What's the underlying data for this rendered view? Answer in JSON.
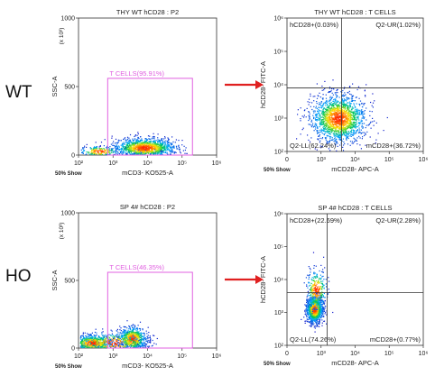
{
  "row_labels": [
    "WT",
    "HO"
  ],
  "colors": {
    "gate": "#e060e0",
    "arrow": "#e02020",
    "axis": "#333333",
    "quad": "#333333"
  },
  "chart_data": [
    {
      "type": "scatter",
      "title": "THY WT hCD28 : P2",
      "xlabel": "mCD3- KO525-A",
      "ylabel": "SSC-A",
      "y_multiplier": "(x 10³)",
      "footer": "50% Show",
      "x_scale": "log",
      "xlim": [
        100,
        1000000
      ],
      "x_ticks": [
        "10²",
        "10³",
        "10⁴",
        "10⁵",
        "10⁶"
      ],
      "ylim": [
        0,
        1000
      ],
      "y_ticks": [
        "0",
        "500",
        "1000"
      ],
      "gate": {
        "label": "T CELLS(95.91%)",
        "x_range": [
          700,
          200000
        ],
        "y_range": [
          0,
          560
        ]
      },
      "populations": [
        {
          "x_log_center": 3.9,
          "y_center": 55,
          "x_log_sd": 0.45,
          "y_sd": 35,
          "count": 1300
        },
        {
          "x_log_center": 2.6,
          "y_center": 30,
          "x_log_sd": 0.3,
          "y_sd": 20,
          "count": 200
        }
      ]
    },
    {
      "type": "scatter",
      "title": "THY WT hCD28 : T CELLS",
      "xlabel": "mCD28- APC-A",
      "ylabel": "hCD28- FITC-A",
      "footer": "50% Show",
      "x_scale": "log",
      "y_scale": "log",
      "xlim": [
        100,
        1000000
      ],
      "ylim": [
        100,
        1000000
      ],
      "x_ticks": [
        "0",
        "10³",
        "10⁴",
        "10⁵",
        "10⁶"
      ],
      "y_ticks": [
        "10²",
        "10³",
        "10⁴",
        "10⁵",
        "10⁶"
      ],
      "quadrant_split": {
        "x": 4000,
        "y": 8000
      },
      "quadrants": {
        "ul": "hCD28+(0.03%)",
        "ur": "Q2-UR(1.02%)",
        "ll": "Q2-LL(62.24%)",
        "lr": "mCD28+(36.72%)"
      },
      "populations": [
        {
          "x_log_center": 3.5,
          "y_log_center": 3.0,
          "x_log_sd": 0.4,
          "y_log_sd": 0.35,
          "count": 1700
        }
      ]
    },
    {
      "type": "scatter",
      "title": "SP 4# hCD28 : P2",
      "xlabel": "mCD3- KO525-A",
      "ylabel": "SSC-A",
      "y_multiplier": "(x 10³)",
      "footer": "50% Show",
      "x_scale": "log",
      "xlim": [
        100,
        1000000
      ],
      "x_ticks": [
        "10²",
        "10³",
        "10⁴",
        "10⁵",
        "10⁶"
      ],
      "ylim": [
        0,
        1000
      ],
      "y_ticks": [
        "0",
        "500",
        "1000"
      ],
      "gate": {
        "label": "T CELLS(46.35%)",
        "x_range": [
          700,
          200000
        ],
        "y_range": [
          0,
          560
        ]
      },
      "populations": [
        {
          "x_log_center": 2.4,
          "y_center": 40,
          "x_log_sd": 0.3,
          "y_sd": 30,
          "count": 700
        },
        {
          "x_log_center": 3.55,
          "y_center": 70,
          "x_log_sd": 0.2,
          "y_sd": 45,
          "count": 700
        },
        {
          "x_log_center": 3.0,
          "y_center": 40,
          "x_log_sd": 0.5,
          "y_sd": 40,
          "count": 300
        }
      ]
    },
    {
      "type": "scatter",
      "title": "SP 4# hCD28 : T CELLS",
      "xlabel": "mCD28- APC-A",
      "ylabel": "hCD28- FITC-A",
      "footer": "50% Show",
      "x_scale": "log",
      "y_scale": "log",
      "xlim": [
        100,
        1000000
      ],
      "ylim": [
        100,
        1000000
      ],
      "x_ticks": [
        "0",
        "10³",
        "10⁴",
        "10⁵",
        "10⁶"
      ],
      "y_ticks": [
        "10²",
        "10³",
        "10⁴",
        "10⁵",
        "10⁶"
      ],
      "quadrant_split": {
        "x": 1500,
        "y": 4000
      },
      "quadrants": {
        "ul": "hCD28+(22.69%)",
        "ur": "Q2-UR(2.28%)",
        "ll": "Q2-LL(74.26%)",
        "lr": "mCD28+(0.77%)"
      },
      "populations": [
        {
          "x_log_center": 2.8,
          "y_log_center": 3.1,
          "x_log_sd": 0.12,
          "y_log_sd": 0.2,
          "count": 1200
        },
        {
          "x_log_center": 2.85,
          "y_log_center": 3.7,
          "x_log_sd": 0.15,
          "y_log_sd": 0.3,
          "count": 300
        }
      ]
    }
  ]
}
